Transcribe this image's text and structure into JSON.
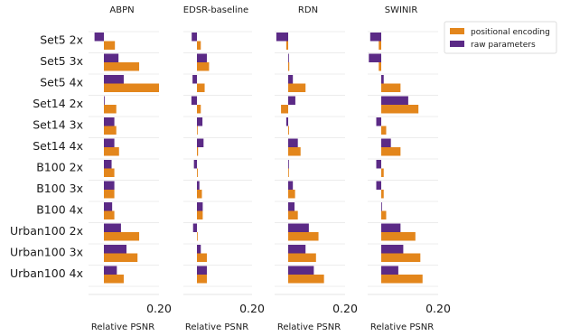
{
  "chart_data": {
    "type": "bar",
    "orientation": "horizontal",
    "categories": [
      "Set5 2x",
      "Set5 3x",
      "Set5 4x",
      "Set14 2x",
      "Set14 3x",
      "Set14 4x",
      "B100 2x",
      "B100 3x",
      "B100 4x",
      "Urban100 2x",
      "Urban100 3x",
      "Urban100 4x"
    ],
    "xlabel": "Relative PSNR",
    "xtick_label": "0.20",
    "legend": {
      "placement": "top-right",
      "entries": [
        {
          "name": "positional encoding",
          "color": "#e3861c"
        },
        {
          "name": "raw parameters",
          "color": "#5b2a86"
        }
      ]
    },
    "grid": true,
    "xlim": [
      -0.05,
      0.2
    ],
    "panels": [
      {
        "title": "ABPN",
        "series": [
          {
            "name": "positional encoding",
            "values": [
              0.04,
              0.128,
              0.2,
              0.045,
              0.045,
              0.055,
              0.038,
              0.038,
              0.038,
              0.128,
              0.122,
              0.072
            ]
          },
          {
            "name": "raw parameters",
            "values": [
              -0.034,
              0.053,
              0.072,
              0.0,
              0.038,
              0.038,
              0.028,
              0.038,
              0.03,
              0.062,
              0.082,
              0.047
            ]
          }
        ]
      },
      {
        "title": "EDSR-baseline",
        "series": [
          {
            "name": "positional encoding",
            "values": [
              0.014,
              0.044,
              0.028,
              0.014,
              0.002,
              0.004,
              0.003,
              0.018,
              0.021,
              0.002,
              0.036,
              0.036
            ]
          },
          {
            "name": "raw parameters",
            "values": [
              -0.019,
              0.036,
              -0.016,
              -0.02,
              0.02,
              0.024,
              -0.011,
              0.009,
              0.021,
              -0.014,
              0.014,
              0.036
            ]
          }
        ]
      },
      {
        "title": "RDN",
        "series": [
          {
            "name": "positional encoding",
            "values": [
              -0.007,
              0.004,
              0.063,
              -0.026,
              0.003,
              0.045,
              0.001,
              0.025,
              0.035,
              0.11,
              0.101,
              0.13
            ]
          },
          {
            "name": "raw parameters",
            "values": [
              -0.043,
              0.001,
              0.017,
              0.026,
              -0.007,
              0.035,
              0.001,
              0.017,
              0.023,
              0.075,
              0.063,
              0.093
            ]
          }
        ]
      },
      {
        "title": "SWINIR",
        "series": [
          {
            "name": "positional encoding",
            "values": [
              -0.009,
              -0.009,
              0.07,
              0.135,
              0.018,
              0.07,
              0.009,
              0.009,
              0.018,
              0.124,
              0.142,
              0.15
            ]
          },
          {
            "name": "raw parameters",
            "values": [
              -0.04,
              -0.045,
              0.009,
              0.098,
              -0.018,
              0.035,
              -0.018,
              -0.018,
              0.002,
              0.07,
              0.08,
              0.062
            ]
          }
        ]
      }
    ]
  }
}
